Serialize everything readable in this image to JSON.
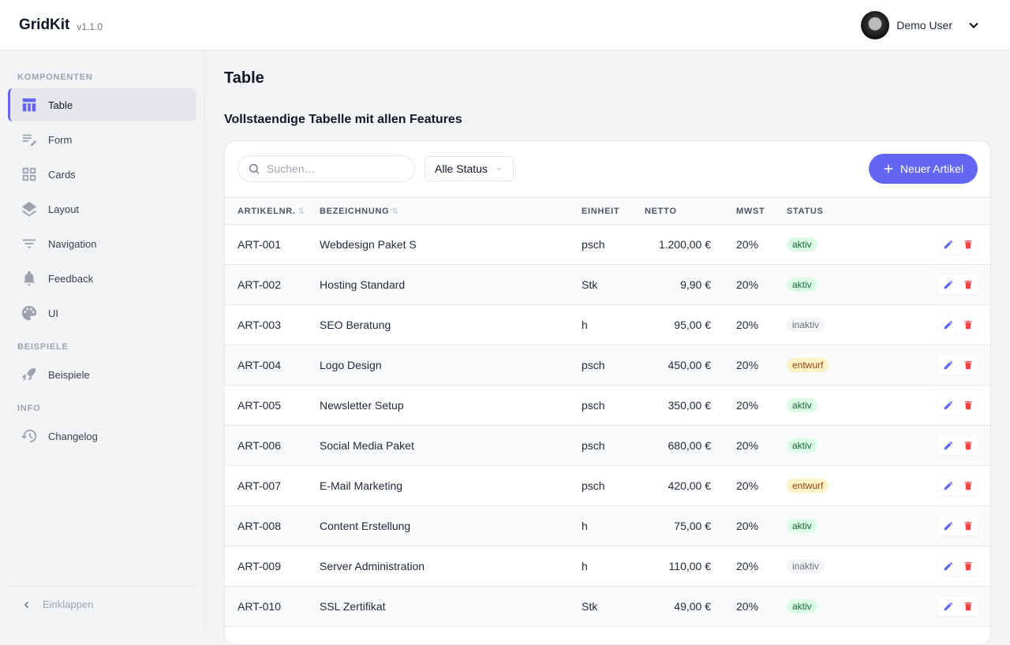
{
  "app": {
    "name": "GridKit",
    "version": "v1.1.0"
  },
  "user": {
    "name": "Demo User"
  },
  "sidebar": {
    "sections": [
      {
        "title": "KOMPONENTEN",
        "items": [
          {
            "label": "Table",
            "icon": "table-icon",
            "active": true
          },
          {
            "label": "Form",
            "icon": "form-icon"
          },
          {
            "label": "Cards",
            "icon": "grid-icon"
          },
          {
            "label": "Layout",
            "icon": "layers-icon"
          },
          {
            "label": "Navigation",
            "icon": "filter-icon"
          },
          {
            "label": "Feedback",
            "icon": "bell-icon"
          },
          {
            "label": "UI",
            "icon": "palette-icon"
          }
        ]
      },
      {
        "title": "BEISPIELE",
        "items": [
          {
            "label": "Beispiele",
            "icon": "rocket-icon"
          }
        ]
      },
      {
        "title": "INFO",
        "items": [
          {
            "label": "Changelog",
            "icon": "history-icon"
          }
        ]
      }
    ],
    "collapse": "Einklappen"
  },
  "page": {
    "title": "Table",
    "subtitle": "Vollstaendige Tabelle mit allen Features"
  },
  "toolbar": {
    "search_placeholder": "Suchen…",
    "status_filter": "Alle Status",
    "new_button": "Neuer Artikel"
  },
  "table": {
    "headers": [
      "ARTIKELNR.",
      "BEZEICHNUNG",
      "EINHEIT",
      "NETTO",
      "MWST",
      "STATUS"
    ],
    "rows": [
      [
        "ART-001",
        "Webdesign Paket S",
        "psch",
        "1.200,00 €",
        "20%",
        "aktiv"
      ],
      [
        "ART-002",
        "Hosting Standard",
        "Stk",
        "9,90 €",
        "20%",
        "aktiv"
      ],
      [
        "ART-003",
        "SEO Beratung",
        "h",
        "95,00 €",
        "20%",
        "inaktiv"
      ],
      [
        "ART-004",
        "Logo Design",
        "psch",
        "450,00 €",
        "20%",
        "entwurf"
      ],
      [
        "ART-005",
        "Newsletter Setup",
        "psch",
        "350,00 €",
        "20%",
        "aktiv"
      ],
      [
        "ART-006",
        "Social Media Paket",
        "psch",
        "680,00 €",
        "20%",
        "aktiv"
      ],
      [
        "ART-007",
        "E-Mail Marketing",
        "psch",
        "420,00 €",
        "20%",
        "entwurf"
      ],
      [
        "ART-008",
        "Content Erstellung",
        "h",
        "75,00 €",
        "20%",
        "aktiv"
      ],
      [
        "ART-009",
        "Server Administration",
        "h",
        "110,00 €",
        "20%",
        "inaktiv"
      ],
      [
        "ART-010",
        "SSL Zertifikat",
        "Stk",
        "49,00 €",
        "20%",
        "aktiv"
      ]
    ]
  },
  "colors": {
    "accent": "#6366f1",
    "danger": "#ef4444"
  }
}
